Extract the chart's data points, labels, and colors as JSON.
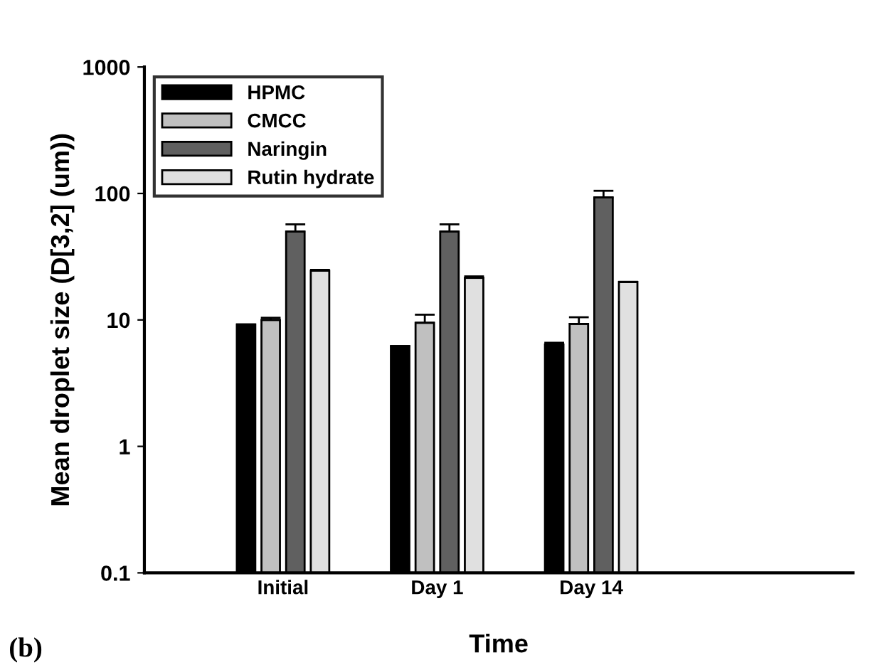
{
  "chart_data": {
    "type": "bar",
    "xlabel": "Time",
    "ylabel": "Mean droplet size (D[3,2] (um))",
    "categories": [
      "Initial",
      "Day 1",
      "Day 14"
    ],
    "series": [
      {
        "name": "HPMC",
        "color": "#000000",
        "values": [
          9.2,
          6.2,
          6.4
        ],
        "errors": [
          null,
          null,
          0.2
        ]
      },
      {
        "name": "CMCC",
        "color": "#c0c0c0",
        "values": [
          10,
          9.5,
          9.3
        ],
        "errors": [
          0.4,
          1.5,
          1.2
        ]
      },
      {
        "name": "Naringin",
        "color": "#606060",
        "values": [
          50,
          50,
          93
        ],
        "errors": [
          7,
          7,
          12
        ]
      },
      {
        "name": "Rutin hydrate",
        "color": "#e0e0e0",
        "values": [
          24.5,
          21.5,
          20
        ],
        "errors": [
          0.4,
          0.6,
          null
        ]
      }
    ],
    "log": "y",
    "ylim": [
      0.1,
      1000
    ],
    "yticks": [
      0.1,
      1,
      10,
      100,
      1000
    ],
    "grid": false,
    "legend": "top left",
    "annotations": [
      "(b)"
    ]
  }
}
